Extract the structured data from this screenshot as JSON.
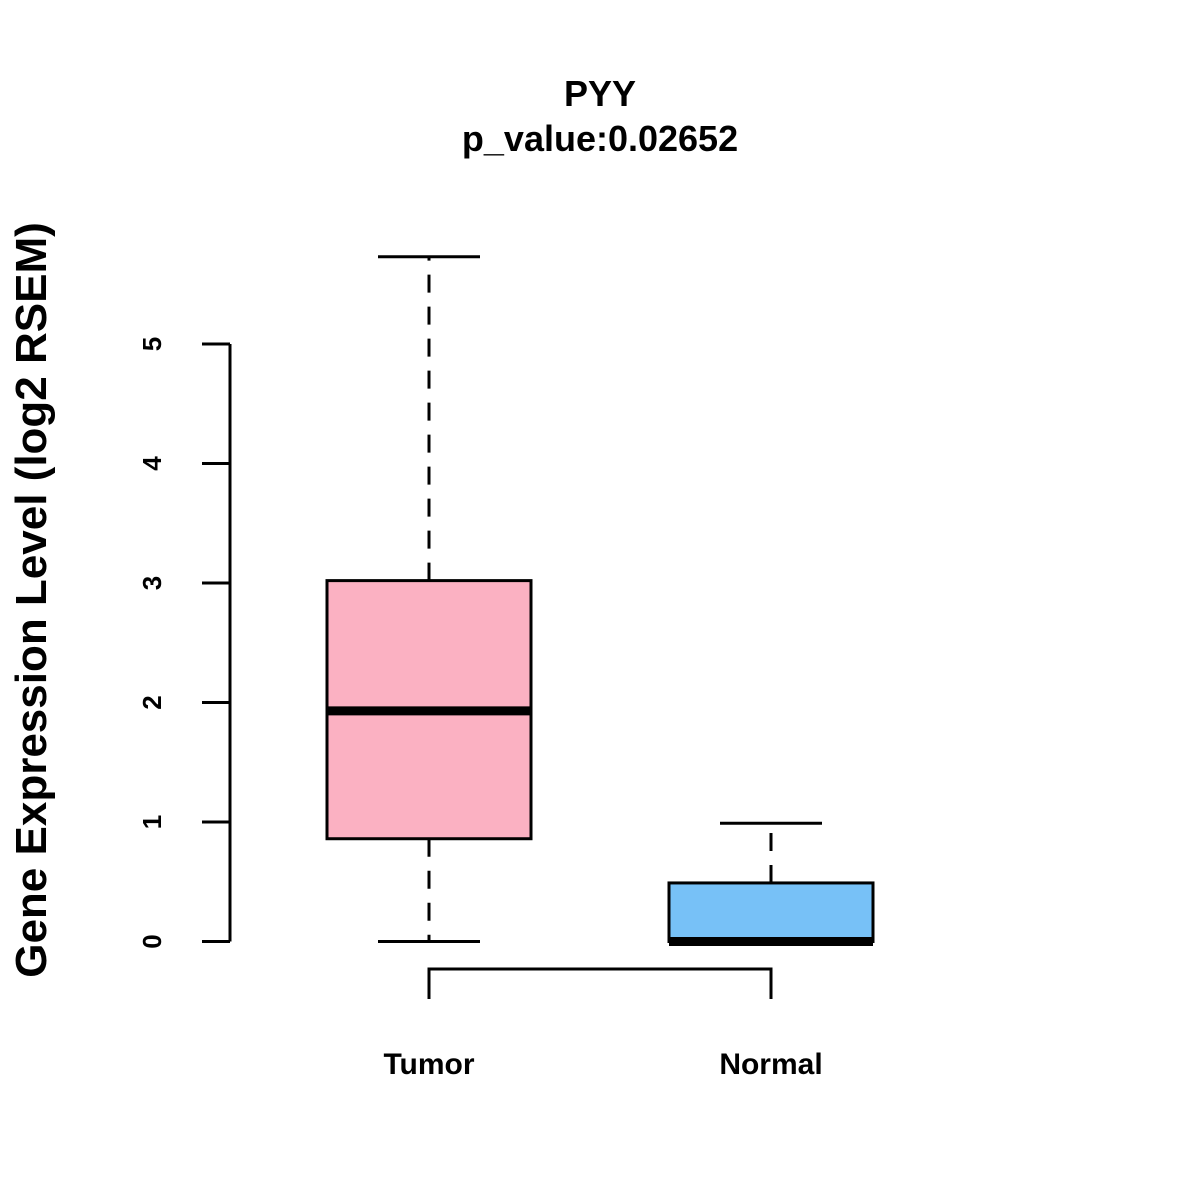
{
  "chart_data": {
    "type": "boxplot",
    "title": "PYY",
    "subtitle": "p_value:0.02652",
    "xlabel": "",
    "ylabel": "Gene Expression Level (log2 RSEM)",
    "categories": [
      "Tumor",
      "Normal"
    ],
    "ylim": [
      0,
      5
    ],
    "yticks": [
      "0",
      "1",
      "2",
      "3",
      "4",
      "5"
    ],
    "series": [
      {
        "name": "Tumor",
        "whisker_low": 0,
        "q1": 0.86,
        "median": 1.93,
        "q3": 3.02,
        "whisker_high": 5.73,
        "color": "#fbb1c2"
      },
      {
        "name": "Normal",
        "whisker_low": 0,
        "q1": 0,
        "median": 0,
        "q3": 0.49,
        "whisker_high": 0.99,
        "color": "#77c1f7"
      }
    ],
    "comparison_bracket": true
  }
}
